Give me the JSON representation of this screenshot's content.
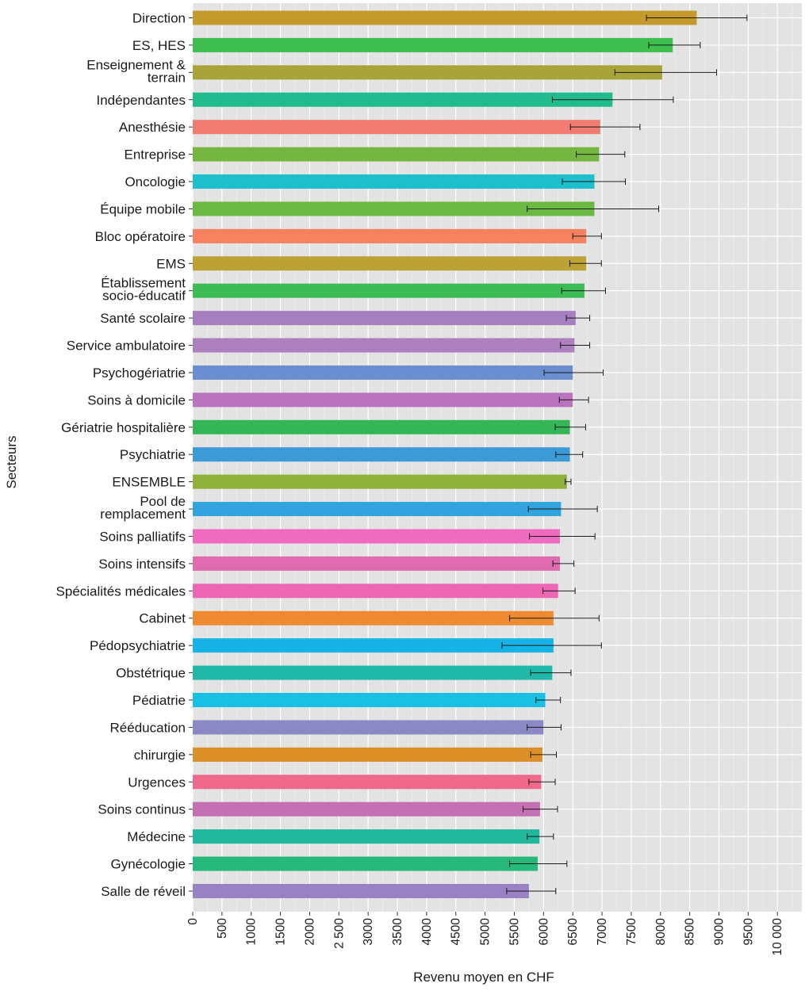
{
  "chart_data": {
    "type": "bar",
    "orientation": "horizontal",
    "xlabel": "Revenu moyen en CHF",
    "ylabel": "Secteurs",
    "xlim": [
      0,
      10500
    ],
    "grid": true,
    "ticks": [
      {
        "value": 0,
        "label": "0"
      },
      {
        "value": 500,
        "label": "500"
      },
      {
        "value": 1000,
        "label": "1000"
      },
      {
        "value": 1500,
        "label": "1500"
      },
      {
        "value": 2000,
        "label": "2000"
      },
      {
        "value": 2500,
        "label": "2 500"
      },
      {
        "value": 3000,
        "label": "3000"
      },
      {
        "value": 3500,
        "label": "3500"
      },
      {
        "value": 4000,
        "label": "4000"
      },
      {
        "value": 4500,
        "label": "4500"
      },
      {
        "value": 5000,
        "label": "5000"
      },
      {
        "value": 5500,
        "label": "5500"
      },
      {
        "value": 6000,
        "label": "6000"
      },
      {
        "value": 6500,
        "label": "6500"
      },
      {
        "value": 7000,
        "label": "7000"
      },
      {
        "value": 7500,
        "label": "7500"
      },
      {
        "value": 8000,
        "label": "8000"
      },
      {
        "value": 8500,
        "label": "8500"
      },
      {
        "value": 9000,
        "label": "9000"
      },
      {
        "value": 9500,
        "label": "9500"
      },
      {
        "value": 10000,
        "label": "10 000"
      }
    ],
    "bars": [
      {
        "label": [
          "Direction"
        ],
        "value": 8620,
        "err_low": 7760,
        "err_high": 9480,
        "color": "#C49A2C"
      },
      {
        "label": [
          "ES, HES"
        ],
        "value": 8210,
        "err_low": 7800,
        "err_high": 8680,
        "color": "#3DBE4E"
      },
      {
        "label": [
          "Enseignement &",
          "terrain"
        ],
        "value": 8030,
        "err_low": 7220,
        "err_high": 8960,
        "color": "#A9A43A"
      },
      {
        "label": [
          "Indépendantes"
        ],
        "value": 7180,
        "err_low": 6150,
        "err_high": 8220,
        "color": "#21BC8E"
      },
      {
        "label": [
          "Anesthésie"
        ],
        "value": 6970,
        "err_low": 6460,
        "err_high": 7650,
        "color": "#F07C72"
      },
      {
        "label": [
          "Entreprise"
        ],
        "value": 6950,
        "err_low": 6560,
        "err_high": 7390,
        "color": "#74B640"
      },
      {
        "label": [
          "Oncologie"
        ],
        "value": 6870,
        "err_low": 6320,
        "err_high": 7400,
        "color": "#1EBFCC"
      },
      {
        "label": [
          "Équipe mobile"
        ],
        "value": 6870,
        "err_low": 5720,
        "err_high": 7970,
        "color": "#6BB842"
      },
      {
        "label": [
          "Bloc opératoire"
        ],
        "value": 6730,
        "err_low": 6500,
        "err_high": 6990,
        "color": "#F88260"
      },
      {
        "label": [
          "EMS"
        ],
        "value": 6730,
        "err_low": 6450,
        "err_high": 6990,
        "color": "#BCA135"
      },
      {
        "label": [
          "Établissement",
          "socio-éducatif"
        ],
        "value": 6700,
        "err_low": 6310,
        "err_high": 7060,
        "color": "#3DBB55"
      },
      {
        "label": [
          "Santé scolaire"
        ],
        "value": 6550,
        "err_low": 6390,
        "err_high": 6790,
        "color": "#A57FC0"
      },
      {
        "label": [
          "Service ambulatoire"
        ],
        "value": 6530,
        "err_low": 6290,
        "err_high": 6790,
        "color": "#AC7FBD"
      },
      {
        "label": [
          "Psychogériatrie"
        ],
        "value": 6500,
        "err_low": 6010,
        "err_high": 7020,
        "color": "#6A8ECF"
      },
      {
        "label": [
          "Soins à domicile"
        ],
        "value": 6500,
        "err_low": 6270,
        "err_high": 6770,
        "color": "#BA74BE"
      },
      {
        "label": [
          "Gériatrie hospitalière"
        ],
        "value": 6450,
        "err_low": 6200,
        "err_high": 6720,
        "color": "#34B657"
      },
      {
        "label": [
          "Psychiatrie"
        ],
        "value": 6450,
        "err_low": 6210,
        "err_high": 6670,
        "color": "#3C9AD7"
      },
      {
        "label": [
          "ENSEMBLE"
        ],
        "value": 6400,
        "err_low": 6370,
        "err_high": 6470,
        "color": "#90B23C"
      },
      {
        "label": [
          "Pool de",
          "remplacement"
        ],
        "value": 6300,
        "err_low": 5740,
        "err_high": 6920,
        "color": "#32A3DF"
      },
      {
        "label": [
          "Soins palliatifs"
        ],
        "value": 6280,
        "err_low": 5760,
        "err_high": 6880,
        "color": "#EE6BBF"
      },
      {
        "label": [
          "Soins intensifs"
        ],
        "value": 6280,
        "err_low": 6160,
        "err_high": 6520,
        "color": "#E06BB0"
      },
      {
        "label": [
          "Spécialités médicales"
        ],
        "value": 6250,
        "err_low": 5990,
        "err_high": 6540,
        "color": "#EE67B5"
      },
      {
        "label": [
          "Cabinet"
        ],
        "value": 6170,
        "err_low": 5420,
        "err_high": 6950,
        "color": "#EE8A2F"
      },
      {
        "label": [
          "Pédopsychiatrie"
        ],
        "value": 6170,
        "err_low": 5290,
        "err_high": 6990,
        "color": "#17B3E6"
      },
      {
        "label": [
          "Obstétrique"
        ],
        "value": 6150,
        "err_low": 5780,
        "err_high": 6470,
        "color": "#20B8A8"
      },
      {
        "label": [
          "Pédiatrie"
        ],
        "value": 6030,
        "err_low": 5870,
        "err_high": 6290,
        "color": "#17C1E3"
      },
      {
        "label": [
          "Rééducation"
        ],
        "value": 6000,
        "err_low": 5720,
        "err_high": 6300,
        "color": "#8A89C6"
      },
      {
        "label": [
          "chirurgie"
        ],
        "value": 5980,
        "err_low": 5780,
        "err_high": 6220,
        "color": "#DC8F27"
      },
      {
        "label": [
          "Urgences"
        ],
        "value": 5960,
        "err_low": 5750,
        "err_high": 6200,
        "color": "#F1698A"
      },
      {
        "label": [
          "Soins continus"
        ],
        "value": 5940,
        "err_low": 5650,
        "err_high": 6240,
        "color": "#C56FB4"
      },
      {
        "label": [
          "Médecine"
        ],
        "value": 5930,
        "err_low": 5720,
        "err_high": 6170,
        "color": "#20B79D"
      },
      {
        "label": [
          "Gynécologie"
        ],
        "value": 5900,
        "err_low": 5420,
        "err_high": 6400,
        "color": "#27B97C"
      },
      {
        "label": [
          "Salle de réveil"
        ],
        "value": 5750,
        "err_low": 5370,
        "err_high": 6210,
        "color": "#9882C4"
      }
    ]
  }
}
